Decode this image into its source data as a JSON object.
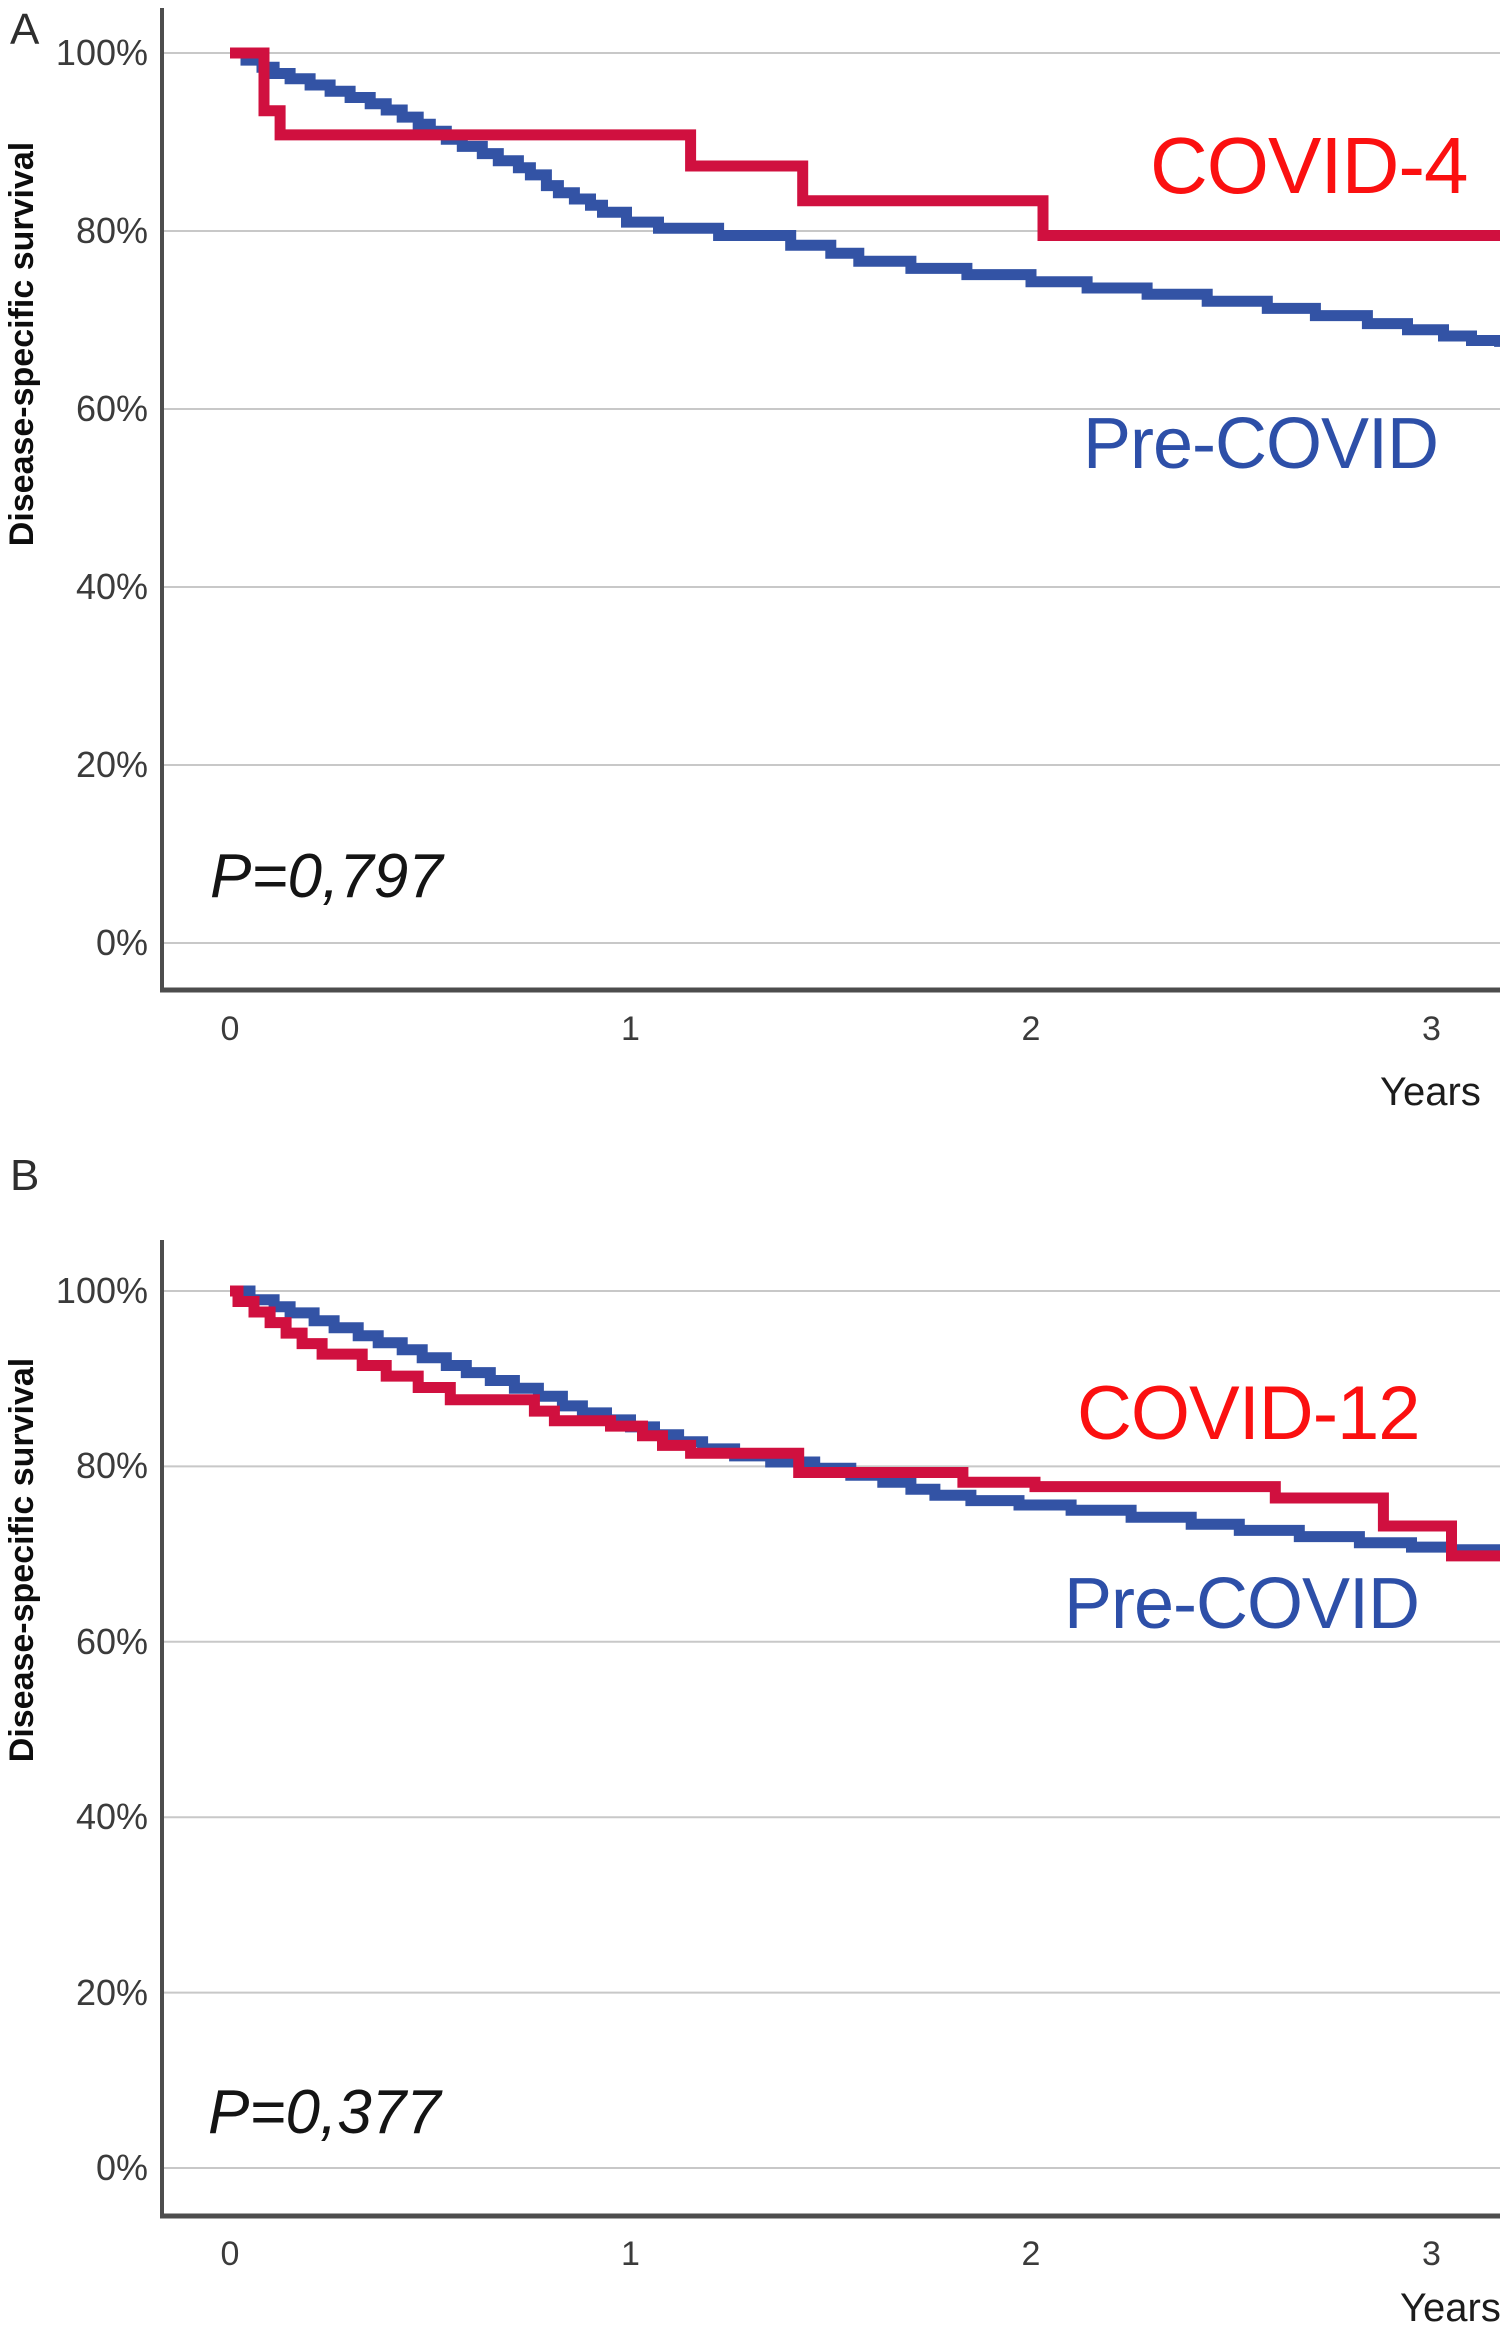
{
  "figure": {
    "panel_a_letter": "A",
    "panel_b_letter": "B"
  },
  "colors": {
    "red_curve": "#d0103f",
    "blue_curve": "#3353a5",
    "red_label": "#fb1010",
    "blue_label": "#2d4fa8",
    "grid": "#c8c8c8",
    "axis": "#4d4d4d"
  },
  "chart_data": [
    {
      "type": "line",
      "panel": "A",
      "subtype": "kaplan-meier-step",
      "xlabel": "Years",
      "ylabel": "Disease-specific survival",
      "annotation": "P=0,797",
      "xlim": [
        0,
        3.17
      ],
      "ylim_pct": [
        0,
        100
      ],
      "grid": "horizontal",
      "legend_position": "labels-on-plot",
      "xticks": [
        0,
        1,
        2,
        3
      ],
      "yticks": [
        {
          "v": 100,
          "label": "100%"
        },
        {
          "v": 80,
          "label": "80%"
        },
        {
          "v": 60,
          "label": "60%"
        },
        {
          "v": 40,
          "label": "40%"
        },
        {
          "v": 20,
          "label": "20%"
        },
        {
          "v": 0,
          "label": "0%"
        }
      ],
      "series": [
        {
          "name": "COVID-4",
          "color_key": "red",
          "steps": [
            [
              0,
              100
            ],
            [
              0.085,
              93.5
            ],
            [
              0.125,
              90.8
            ],
            [
              1.15,
              87.3
            ],
            [
              1.43,
              83.4
            ],
            [
              2.03,
              79.5
            ],
            [
              3.17,
              79.5
            ]
          ]
        },
        {
          "name": "Pre-COVID",
          "color_key": "blue",
          "steps": [
            [
              0,
              100
            ],
            [
              0.04,
              99.2
            ],
            [
              0.08,
              98.4
            ],
            [
              0.11,
              97.7
            ],
            [
              0.15,
              97.1
            ],
            [
              0.2,
              96.4
            ],
            [
              0.25,
              95.7
            ],
            [
              0.3,
              95.0
            ],
            [
              0.35,
              94.3
            ],
            [
              0.39,
              93.6
            ],
            [
              0.43,
              92.8
            ],
            [
              0.47,
              92.0
            ],
            [
              0.5,
              91.2
            ],
            [
              0.54,
              90.3
            ],
            [
              0.58,
              89.5
            ],
            [
              0.63,
              88.7
            ],
            [
              0.67,
              87.9
            ],
            [
              0.72,
              87.1
            ],
            [
              0.75,
              86.3
            ],
            [
              0.79,
              85.1
            ],
            [
              0.82,
              84.3
            ],
            [
              0.86,
              83.6
            ],
            [
              0.9,
              82.9
            ],
            [
              0.93,
              82.1
            ],
            [
              0.99,
              81.0
            ],
            [
              1.07,
              80.3
            ],
            [
              1.22,
              79.5
            ],
            [
              1.4,
              78.4
            ],
            [
              1.5,
              77.5
            ],
            [
              1.57,
              76.6
            ],
            [
              1.7,
              75.8
            ],
            [
              1.84,
              75.1
            ],
            [
              2.0,
              74.3
            ],
            [
              2.14,
              73.6
            ],
            [
              2.29,
              72.9
            ],
            [
              2.44,
              72.1
            ],
            [
              2.59,
              71.3
            ],
            [
              2.71,
              70.5
            ],
            [
              2.84,
              69.6
            ],
            [
              2.94,
              68.9
            ],
            [
              3.03,
              68.2
            ],
            [
              3.1,
              67.7
            ],
            [
              3.17,
              67.6
            ]
          ]
        }
      ]
    },
    {
      "type": "line",
      "panel": "B",
      "subtype": "kaplan-meier-step",
      "xlabel": "Years",
      "ylabel": "Disease-specific survival",
      "annotation": "P=0,377",
      "xlim": [
        0,
        3.17
      ],
      "ylim_pct": [
        0,
        100
      ],
      "grid": "horizontal",
      "legend_position": "labels-on-plot",
      "xticks": [
        0,
        1,
        2,
        3
      ],
      "yticks": [
        {
          "v": 100,
          "label": "100%"
        },
        {
          "v": 80,
          "label": "80%"
        },
        {
          "v": 60,
          "label": "60%"
        },
        {
          "v": 40,
          "label": "40%"
        },
        {
          "v": 20,
          "label": "20%"
        },
        {
          "v": 0,
          "label": "0%"
        }
      ],
      "series": [
        {
          "name": "COVID-12",
          "color_key": "red",
          "steps": [
            [
              0,
              100
            ],
            [
              0.02,
              98.8
            ],
            [
              0.06,
              97.6
            ],
            [
              0.1,
              96.4
            ],
            [
              0.14,
              95.2
            ],
            [
              0.18,
              94.0
            ],
            [
              0.23,
              92.8
            ],
            [
              0.33,
              91.5
            ],
            [
              0.39,
              90.3
            ],
            [
              0.47,
              89.0
            ],
            [
              0.55,
              87.6
            ],
            [
              0.76,
              86.3
            ],
            [
              0.81,
              85.2
            ],
            [
              0.95,
              84.6
            ],
            [
              1.03,
              83.5
            ],
            [
              1.08,
              82.4
            ],
            [
              1.15,
              81.5
            ],
            [
              1.42,
              79.3
            ],
            [
              1.83,
              78.2
            ],
            [
              2.01,
              77.7
            ],
            [
              2.61,
              76.4
            ],
            [
              2.88,
              73.2
            ],
            [
              3.05,
              69.8
            ],
            [
              3.17,
              69.8
            ]
          ]
        },
        {
          "name": "Pre-COVID",
          "color_key": "blue",
          "steps": [
            [
              0,
              100
            ],
            [
              0.05,
              99.0
            ],
            [
              0.11,
              98.2
            ],
            [
              0.15,
              97.5
            ],
            [
              0.21,
              96.6
            ],
            [
              0.26,
              95.8
            ],
            [
              0.32,
              94.9
            ],
            [
              0.37,
              94.1
            ],
            [
              0.43,
              93.3
            ],
            [
              0.48,
              92.4
            ],
            [
              0.54,
              91.5
            ],
            [
              0.59,
              90.7
            ],
            [
              0.65,
              89.8
            ],
            [
              0.71,
              88.9
            ],
            [
              0.77,
              88.0
            ],
            [
              0.83,
              86.9
            ],
            [
              0.88,
              86.1
            ],
            [
              0.94,
              85.3
            ],
            [
              1.0,
              84.5
            ],
            [
              1.06,
              83.6
            ],
            [
              1.12,
              82.8
            ],
            [
              1.18,
              82.0
            ],
            [
              1.26,
              81.2
            ],
            [
              1.35,
              80.5
            ],
            [
              1.46,
              79.8
            ],
            [
              1.55,
              79.0
            ],
            [
              1.63,
              78.2
            ],
            [
              1.7,
              77.4
            ],
            [
              1.76,
              76.7
            ],
            [
              1.85,
              76.1
            ],
            [
              1.97,
              75.6
            ],
            [
              2.1,
              75.0
            ],
            [
              2.25,
              74.2
            ],
            [
              2.4,
              73.4
            ],
            [
              2.52,
              72.7
            ],
            [
              2.67,
              72.0
            ],
            [
              2.82,
              71.3
            ],
            [
              2.95,
              70.8
            ],
            [
              3.05,
              70.5
            ],
            [
              3.17,
              70.3
            ]
          ]
        }
      ]
    }
  ]
}
